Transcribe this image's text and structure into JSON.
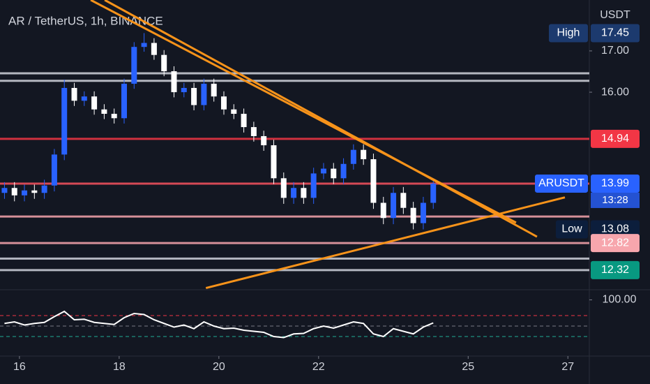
{
  "chart_data": [
    {
      "type": "candlestick",
      "title": "AR / TetherUS, 1h, BINANCE",
      "currency": "USDT",
      "log_scale": true,
      "up_color": "#2962ff",
      "down_color": "#ffffff",
      "x": [
        15.7,
        15.9,
        16.1,
        16.3,
        16.5,
        16.7,
        16.9,
        17.1,
        17.3,
        17.5,
        17.7,
        17.9,
        18.1,
        18.3,
        18.5,
        18.7,
        18.9,
        19.1,
        19.3,
        19.5,
        19.7,
        19.9,
        20.1,
        20.3,
        20.5,
        20.7,
        20.9,
        21.1,
        21.3,
        21.5,
        21.7,
        21.9,
        22.1,
        22.3,
        22.5,
        22.7,
        22.9,
        23.1,
        23.3,
        23.5,
        23.7,
        23.9,
        24.1,
        24.3
      ],
      "open": [
        13.8,
        13.9,
        13.75,
        13.85,
        13.8,
        13.95,
        14.6,
        16.1,
        15.8,
        15.9,
        15.6,
        15.5,
        15.4,
        16.2,
        17.1,
        17.2,
        16.9,
        16.5,
        16.0,
        16.1,
        15.7,
        16.2,
        15.9,
        15.6,
        15.5,
        15.2,
        15.0,
        14.8,
        14.1,
        13.7,
        13.9,
        13.7,
        14.2,
        14.3,
        14.1,
        14.4,
        14.7,
        14.5,
        13.6,
        13.3,
        13.8,
        13.5,
        13.2,
        13.6
      ],
      "high": [
        14.02,
        14.02,
        13.97,
        13.97,
        14.07,
        14.72,
        16.3,
        16.22,
        16.02,
        16.02,
        15.72,
        15.62,
        16.32,
        17.22,
        17.45,
        17.32,
        17.02,
        16.62,
        16.22,
        16.22,
        16.32,
        16.32,
        16.02,
        15.72,
        15.62,
        15.32,
        15.12,
        14.92,
        14.22,
        14.02,
        14.02,
        14.32,
        14.42,
        14.42,
        14.52,
        14.82,
        14.82,
        14.62,
        13.72,
        13.92,
        13.92,
        13.62,
        13.72,
        14.05
      ],
      "low": [
        13.68,
        13.63,
        13.63,
        13.68,
        13.68,
        13.83,
        14.48,
        15.68,
        15.68,
        15.48,
        15.38,
        15.28,
        15.28,
        16.08,
        16.98,
        16.78,
        16.38,
        15.88,
        15.88,
        15.58,
        15.58,
        15.78,
        15.48,
        15.38,
        15.08,
        14.88,
        14.68,
        13.98,
        13.58,
        13.58,
        13.58,
        13.58,
        14.08,
        13.98,
        13.98,
        14.28,
        14.38,
        13.48,
        13.18,
        13.18,
        13.38,
        13.08,
        13.08,
        13.48
      ],
      "close": [
        13.9,
        13.75,
        13.85,
        13.8,
        13.95,
        14.6,
        16.1,
        15.8,
        15.9,
        15.6,
        15.5,
        15.4,
        16.2,
        17.1,
        17.2,
        16.9,
        16.5,
        16.0,
        16.1,
        15.7,
        16.2,
        15.9,
        15.6,
        15.5,
        15.2,
        15.0,
        14.8,
        14.1,
        13.7,
        13.9,
        13.7,
        14.2,
        14.3,
        14.1,
        14.4,
        14.7,
        14.5,
        13.6,
        13.3,
        13.8,
        13.5,
        13.2,
        13.6,
        13.99
      ],
      "xlim": [
        15.61,
        27.43
      ],
      "xticks": [
        16,
        18,
        20,
        22,
        25,
        27
      ],
      "ylim": [
        11.97,
        18.32
      ],
      "yticks": [
        {
          "value": 16,
          "label": "16.00"
        },
        {
          "value": 17,
          "label": "17.00"
        }
      ],
      "levels": [
        {
          "value": 16.45,
          "color": "#d1d4dc"
        },
        {
          "value": 16.27,
          "color": "#d1d4dc"
        },
        {
          "value": 14.94,
          "color": "#f23645"
        },
        {
          "value": 13.99,
          "color": "#f7525f"
        },
        {
          "value": 13.33,
          "color": "#f7a6ad"
        },
        {
          "value": 12.82,
          "color": "#f7a6ad"
        },
        {
          "value": 12.53,
          "color": "#d1d4dc"
        },
        {
          "value": 12.32,
          "color": "#d1d4dc"
        }
      ],
      "trendlines": [
        {
          "color": "#f7931a",
          "points": [
            [
              17.43,
              18.32
            ],
            [
              25.96,
              13.21
            ]
          ]
        },
        {
          "color": "#f7931a",
          "points": [
            [
              17.71,
              18.32
            ],
            [
              26.38,
              12.94
            ]
          ]
        },
        {
          "color": "#f7931a",
          "points": [
            [
              19.74,
              12.0
            ],
            [
              26.94,
              13.71
            ]
          ]
        }
      ],
      "price_tags": [
        {
          "value": 17.45,
          "label": "17.45",
          "color": "#1c3a6e",
          "name": "High"
        },
        {
          "value": 14.94,
          "label": "14.94",
          "color": "#f23645"
        },
        {
          "value": 13.99,
          "label": "13.99",
          "color": "#2962ff",
          "name": "ARUSDT"
        },
        {
          "value": 13.08,
          "label": "13.08",
          "color": "#0c1e3c",
          "name": "Low"
        },
        {
          "value": 12.82,
          "label": "12.82",
          "color": "#f7a6ad"
        },
        {
          "value": 12.32,
          "label": "12.32",
          "color": "#089981"
        }
      ],
      "countdown": "13:28"
    },
    {
      "type": "line",
      "color": "#ffffff",
      "values": [
        55,
        58,
        52,
        55,
        57,
        68,
        78,
        62,
        63,
        57,
        55,
        53,
        66,
        74,
        72,
        62,
        55,
        48,
        52,
        45,
        58,
        50,
        45,
        46,
        42,
        40,
        38,
        30,
        28,
        35,
        36,
        45,
        50,
        46,
        52,
        58,
        55,
        35,
        30,
        45,
        40,
        35,
        48,
        56
      ],
      "ylim": [
        -7.3,
        119.3
      ],
      "yticks": [
        {
          "value": 100,
          "label": "100.00"
        }
      ],
      "levels": [
        {
          "value": 70,
          "color": "#f23645"
        },
        {
          "value": 50,
          "color": "#787b86"
        },
        {
          "value": 30,
          "color": "#22ab94"
        }
      ]
    }
  ]
}
